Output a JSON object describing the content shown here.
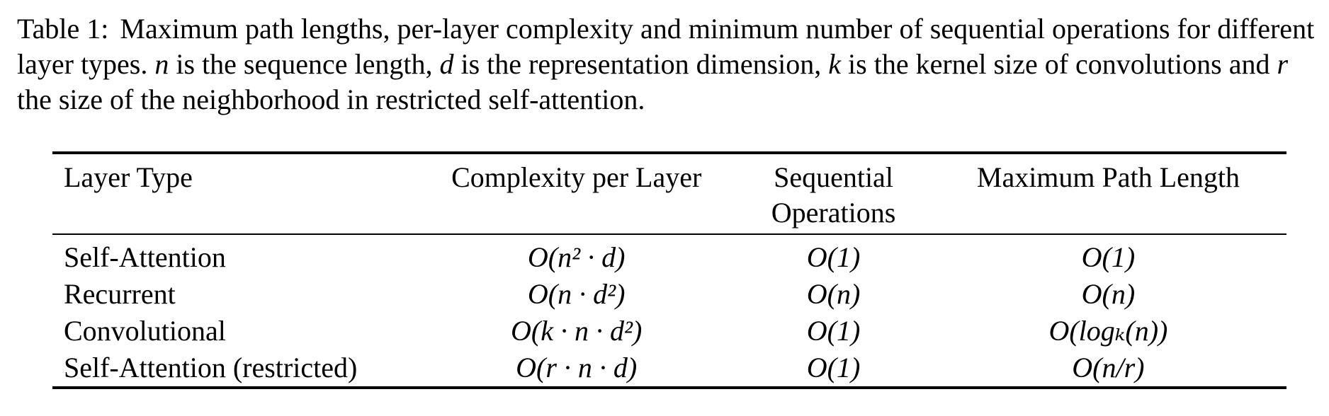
{
  "caption": {
    "label": "Table 1:",
    "text_parts": [
      "Maximum path lengths, per-layer complexity and minimum number of sequential operations for different layer types. ",
      "n",
      " is the sequence length, ",
      "d",
      " is the representation dimension, ",
      "k",
      " is the kernel size of convolutions and ",
      "r",
      " the size of the neighborhood in restricted self-attention."
    ]
  },
  "table": {
    "headers": [
      "Layer Type",
      "Complexity per Layer",
      "Sequential Operations",
      "Maximum Path Length"
    ],
    "rows": [
      [
        "Self-Attention",
        "O(n² · d)",
        "O(1)",
        "O(1)"
      ],
      [
        "Recurrent",
        "O(n · d²)",
        "O(n)",
        "O(n)"
      ],
      [
        "Convolutional",
        "O(k · n · d²)",
        "O(1)",
        "O(logₖ(n))"
      ],
      [
        "Self-Attention (restricted)",
        "O(r · n · d)",
        "O(1)",
        "O(n/r)"
      ]
    ]
  }
}
